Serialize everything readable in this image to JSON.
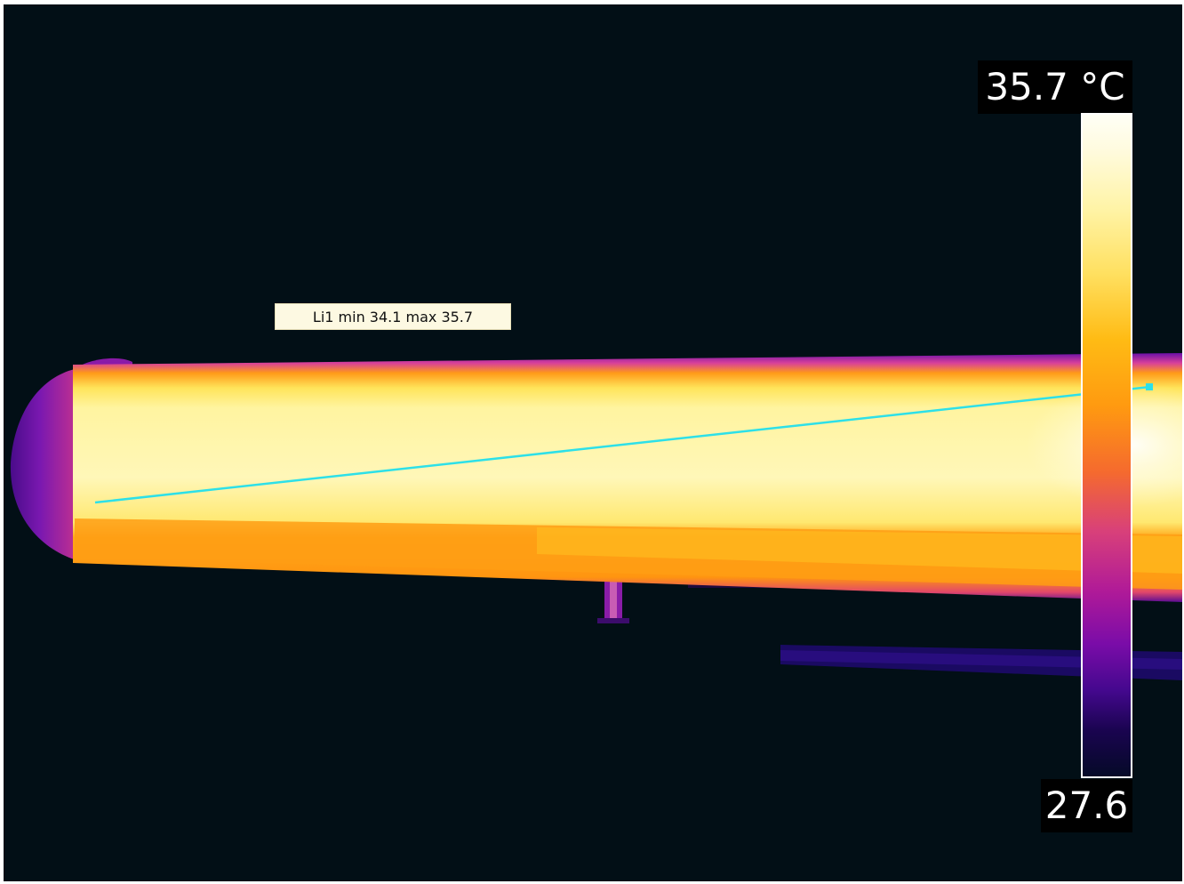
{
  "measurement": {
    "label": "Li1 min 34.1 max 35.7",
    "line_color": "#2de0e8"
  },
  "scale": {
    "max_label": "35.7 °C",
    "min_label": "27.6",
    "max_value": 35.7,
    "min_value": 27.6,
    "unit": "°C",
    "palette": "iron"
  },
  "colors": {
    "background": "#020f16",
    "label_background": "#fdf9e2"
  }
}
